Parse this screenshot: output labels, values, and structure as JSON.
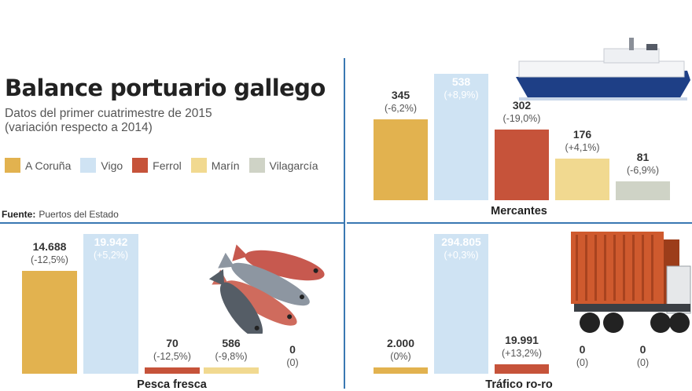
{
  "title": "Balance portuario gallego",
  "subtitle_line1": "Datos del primer cuatrimestre de 2015",
  "subtitle_line2": "(variación respecto a 2014)",
  "source_label": "Fuente:",
  "source_value": "Puertos del Estado",
  "colors": {
    "A Coruña": "#e2b24f",
    "Vigo": "#cfe3f3",
    "Ferrol": "#c6533a",
    "Marín": "#f1d990",
    "Vilagarcía": "#cfd3c6",
    "divider": "#3a78b2"
  },
  "legend": [
    "A Coruña",
    "Vigo",
    "Ferrol",
    "Marín",
    "Vilagarcía"
  ],
  "chart_data": [
    {
      "type": "bar",
      "title": "Mercantes",
      "categories": [
        "A Coruña",
        "Vigo",
        "Ferrol",
        "Marín",
        "Vilagarcía"
      ],
      "values": [
        345,
        538,
        302,
        176,
        81
      ],
      "value_labels": [
        "345",
        "538",
        "302",
        "176",
        "81"
      ],
      "change_labels": [
        "(-6,2%)",
        "(+8,9%)",
        "(-19,0%)",
        "(+4,1%)",
        "(-6,9%)"
      ],
      "illustration": "ship-image"
    },
    {
      "type": "bar",
      "title": "Pesca fresca",
      "categories": [
        "A Coruña",
        "Vigo",
        "Ferrol",
        "Marín",
        "Vilagarcía"
      ],
      "values": [
        14688,
        19942,
        70,
        586,
        0
      ],
      "value_labels": [
        "14.688",
        "19.942",
        "70",
        "586",
        "0"
      ],
      "change_labels": [
        "(-12,5%)",
        "(+5,2%)",
        "(-12,5%)",
        "(-9,8%)",
        "(0)"
      ],
      "illustration": "fish-image"
    },
    {
      "type": "bar",
      "title": "Tráfico ro-ro",
      "categories": [
        "A Coruña",
        "Vigo",
        "Ferrol",
        "Marín",
        "Vilagarcía"
      ],
      "values": [
        2000,
        294805,
        19991,
        0,
        0
      ],
      "value_labels": [
        "2.000",
        "294.805",
        "19.991",
        "0",
        "0"
      ],
      "change_labels": [
        "(0%)",
        "(+0,3%)",
        "(+13,2%)",
        "(0)",
        "(0)"
      ],
      "illustration": "truck-image"
    }
  ]
}
